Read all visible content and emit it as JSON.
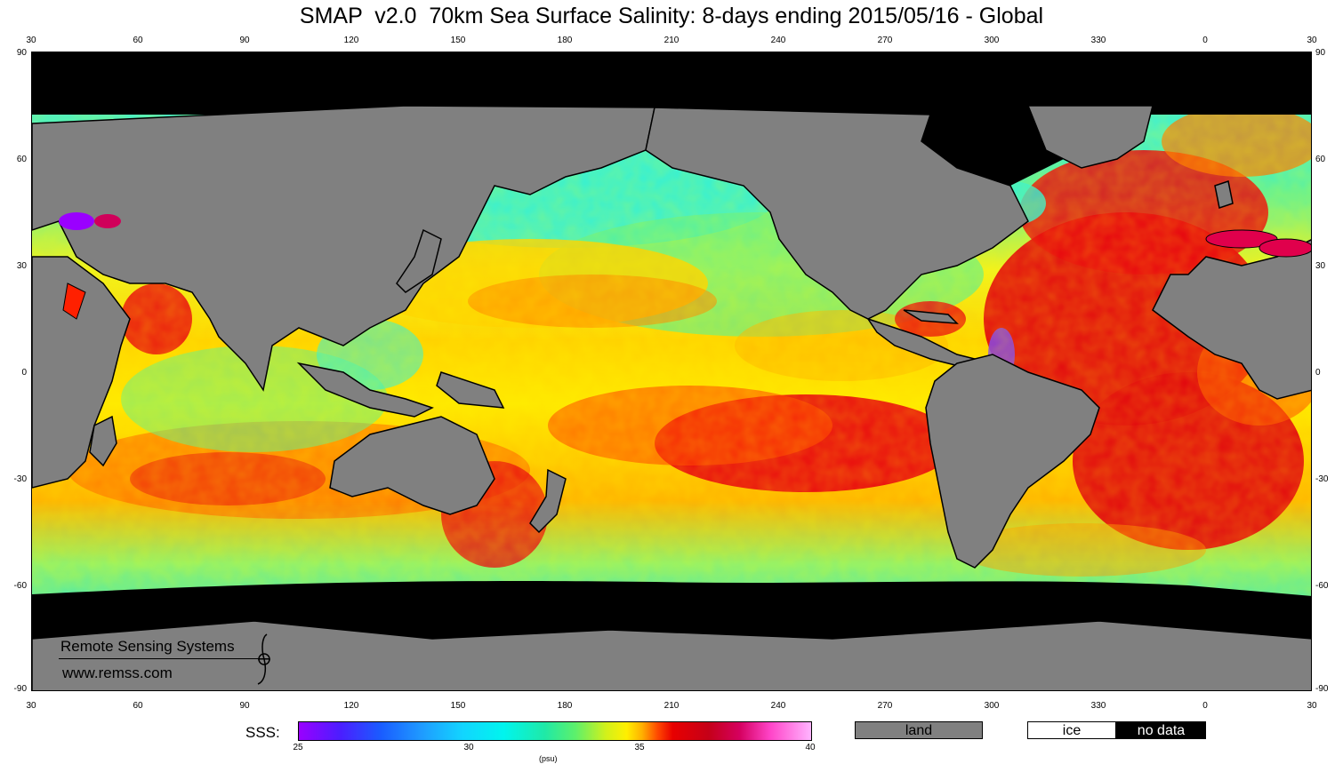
{
  "title": "SMAP  v2.0  70km Sea Surface Salinity: 8-days ending 2015/05/16 - Global",
  "lon_labels": [
    "30",
    "60",
    "90",
    "120",
    "150",
    "180",
    "210",
    "240",
    "270",
    "300",
    "330",
    "0",
    "30"
  ],
  "lat_labels": [
    "90",
    "60",
    "30",
    "0",
    "-30",
    "-60",
    "-90"
  ],
  "watermark": {
    "org": "Remote Sensing Systems",
    "url": "www.remss.com"
  },
  "colorbar": {
    "label": "SSS:",
    "ticks": [
      "25",
      "30",
      "35",
      "40"
    ],
    "units": "(psu)",
    "min": 25,
    "max": 40
  },
  "legend": {
    "land": "land",
    "ice": "ice",
    "no_data": "no data"
  },
  "colors": {
    "land": "#808080",
    "no_data": "#000000",
    "ice": "#ffffff"
  }
}
